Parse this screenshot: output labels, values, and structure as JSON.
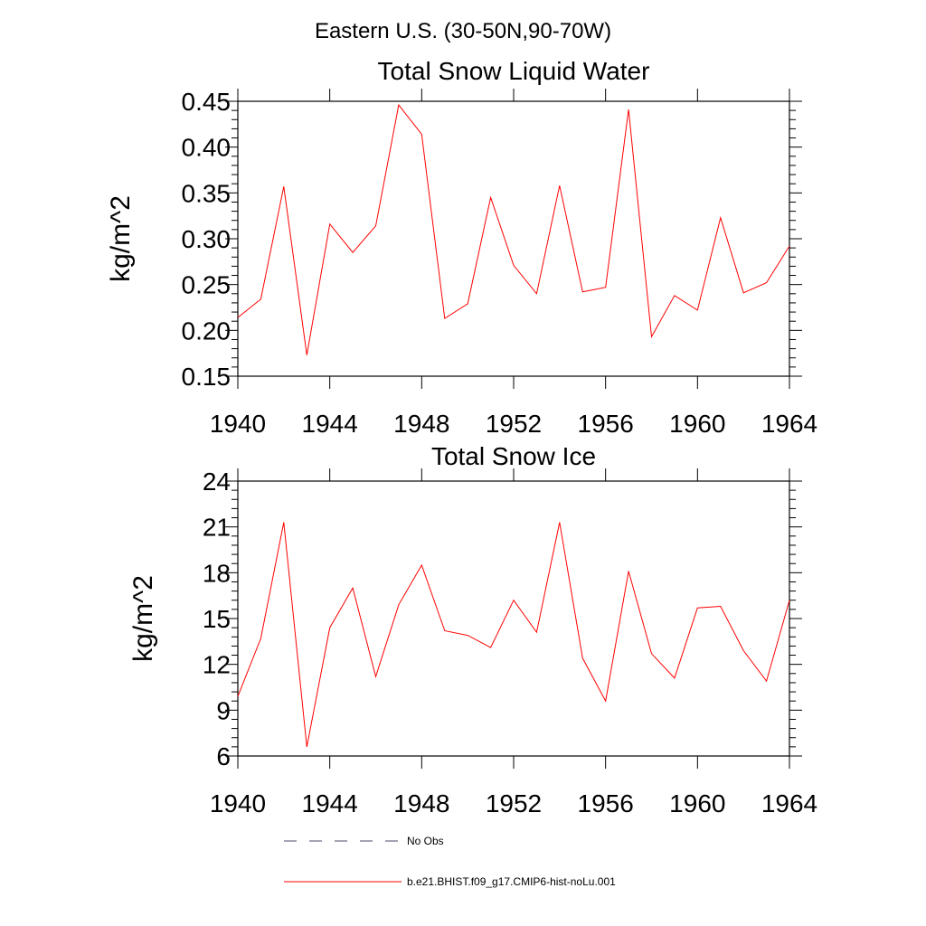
{
  "figure": {
    "title": "Eastern U.S. (30-50N,90-70W)"
  },
  "chart_data": [
    {
      "type": "line",
      "title": "Total Snow Liquid Water",
      "xlabel": "",
      "ylabel": "kg/m^2",
      "xlim": [
        1940,
        1964
      ],
      "ylim": [
        0.15,
        0.45
      ],
      "xticks": [
        1940,
        1944,
        1948,
        1952,
        1956,
        1960,
        1964
      ],
      "xtick_labels": [
        "1940",
        "1944",
        "1948",
        "1952",
        "1956",
        "1960",
        "1964"
      ],
      "yticks": [
        0.15,
        0.2,
        0.25,
        0.3,
        0.35,
        0.4,
        0.45
      ],
      "ytick_labels": [
        "0.15",
        "0.20",
        "0.25",
        "0.30",
        "0.35",
        "0.40",
        "0.45"
      ],
      "grid": false,
      "x": [
        1940,
        1941,
        1942,
        1943,
        1944,
        1945,
        1946,
        1947,
        1948,
        1949,
        1950,
        1951,
        1952,
        1953,
        1954,
        1955,
        1956,
        1957,
        1958,
        1959,
        1960,
        1961,
        1962,
        1963,
        1964
      ],
      "series": [
        {
          "name": "b.e21.BHIST.f09_g17.CMIP6-hist-noLu.001",
          "color": "#ff0000",
          "values": [
            0.214,
            0.234,
            0.357,
            0.173,
            0.316,
            0.285,
            0.314,
            0.446,
            0.414,
            0.213,
            0.229,
            0.345,
            0.271,
            0.24,
            0.358,
            0.242,
            0.247,
            0.441,
            0.193,
            0.238,
            0.222,
            0.323,
            0.241,
            0.252,
            0.292
          ]
        }
      ]
    },
    {
      "type": "line",
      "title": "Total Snow Ice",
      "xlabel": "",
      "ylabel": "kg/m^2",
      "xlim": [
        1940,
        1964
      ],
      "ylim": [
        6,
        24
      ],
      "xticks": [
        1940,
        1944,
        1948,
        1952,
        1956,
        1960,
        1964
      ],
      "xtick_labels": [
        "1940",
        "1944",
        "1948",
        "1952",
        "1956",
        "1960",
        "1964"
      ],
      "yticks": [
        6,
        9,
        12,
        15,
        18,
        21,
        24
      ],
      "ytick_labels": [
        "6",
        "9",
        "12",
        "15",
        "18",
        "21",
        "24"
      ],
      "grid": false,
      "x": [
        1940,
        1941,
        1942,
        1943,
        1944,
        1945,
        1946,
        1947,
        1948,
        1949,
        1950,
        1951,
        1952,
        1953,
        1954,
        1955,
        1956,
        1957,
        1958,
        1959,
        1960,
        1961,
        1962,
        1963,
        1964
      ],
      "series": [
        {
          "name": "b.e21.BHIST.f09_g17.CMIP6-hist-noLu.001",
          "color": "#ff0000",
          "values": [
            9.9,
            13.7,
            21.3,
            6.6,
            14.4,
            17.0,
            11.2,
            15.9,
            18.5,
            14.2,
            13.9,
            13.1,
            16.2,
            14.1,
            21.3,
            12.4,
            9.6,
            18.1,
            12.7,
            11.1,
            15.7,
            15.8,
            12.9,
            10.9,
            16.2
          ]
        }
      ]
    }
  ],
  "legend": {
    "placement": "bottom",
    "entries": [
      {
        "label": "No Obs",
        "style": "dashed",
        "color": "#4a4a6a"
      },
      {
        "label": "b.e21.BHIST.f09_g17.CMIP6-hist-noLu.001",
        "style": "solid",
        "color": "#ff0000"
      }
    ]
  }
}
